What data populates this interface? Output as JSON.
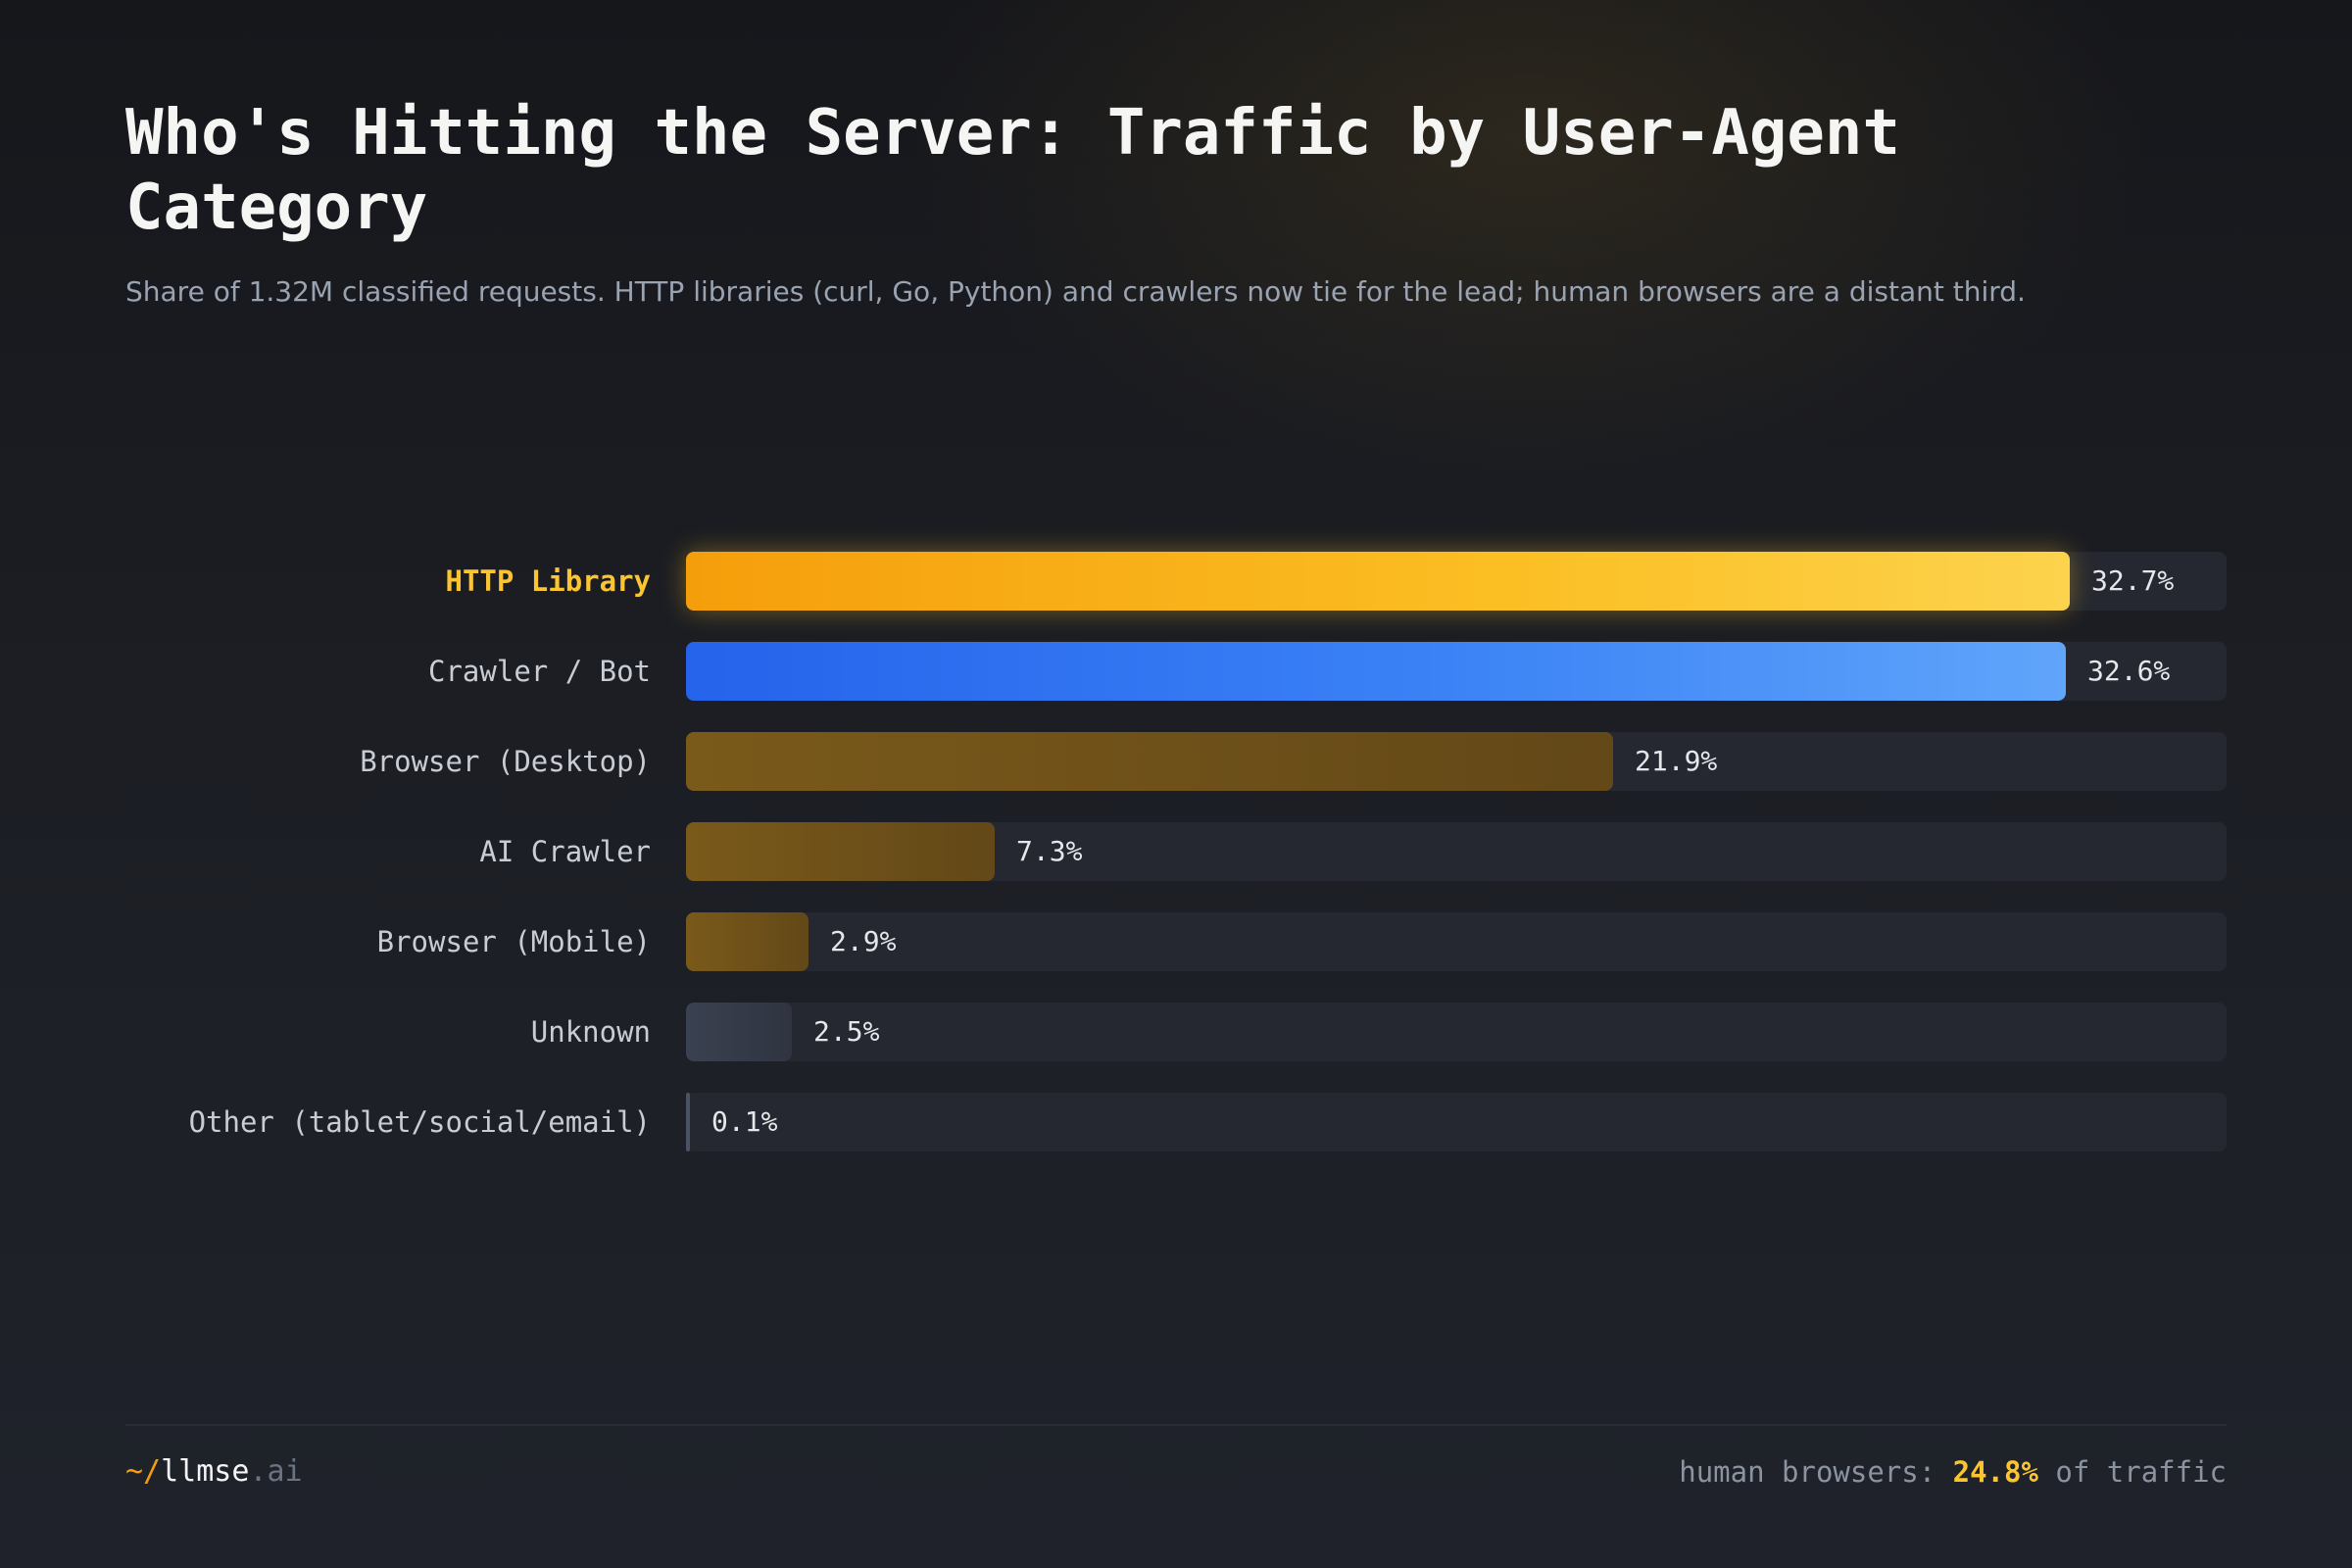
{
  "header": {
    "title": "Who's Hitting the Server: Traffic by User-Agent Category",
    "subtitle": "Share of 1.32M classified requests. HTTP libraries (curl, Go, Python) and crawlers now tie for the lead; human browsers are a distant third."
  },
  "chart_data": {
    "type": "bar",
    "orientation": "horizontal",
    "title": "Who's Hitting the Server: Traffic by User-Agent Category",
    "unit": "%",
    "xlim": [
      0,
      36.4
    ],
    "grid": false,
    "categories": [
      "HTTP Library",
      "Crawler / Bot",
      "Browser (Desktop)",
      "AI Crawler",
      "Browser (Mobile)",
      "Unknown",
      "Other (tablet/social/email)"
    ],
    "values": [
      32.7,
      32.6,
      21.9,
      7.3,
      2.9,
      2.5,
      0.1
    ],
    "value_labels": [
      "32.7%",
      "32.6%",
      "21.9%",
      "7.3%",
      "2.9%",
      "2.5%",
      "0.1%"
    ],
    "highlighted": "HTTP Library",
    "colors": [
      "#fbbf24",
      "#3b82f6",
      "#6f5119",
      "#6f5119",
      "#6f5119",
      "#3a4150",
      "#4b5363"
    ]
  },
  "footer": {
    "brand_prefix": "~/",
    "brand_name": "llmse",
    "brand_tld": ".ai",
    "note_prefix": "human browsers: ",
    "note_value": "24.8%",
    "note_suffix": " of traffic"
  }
}
